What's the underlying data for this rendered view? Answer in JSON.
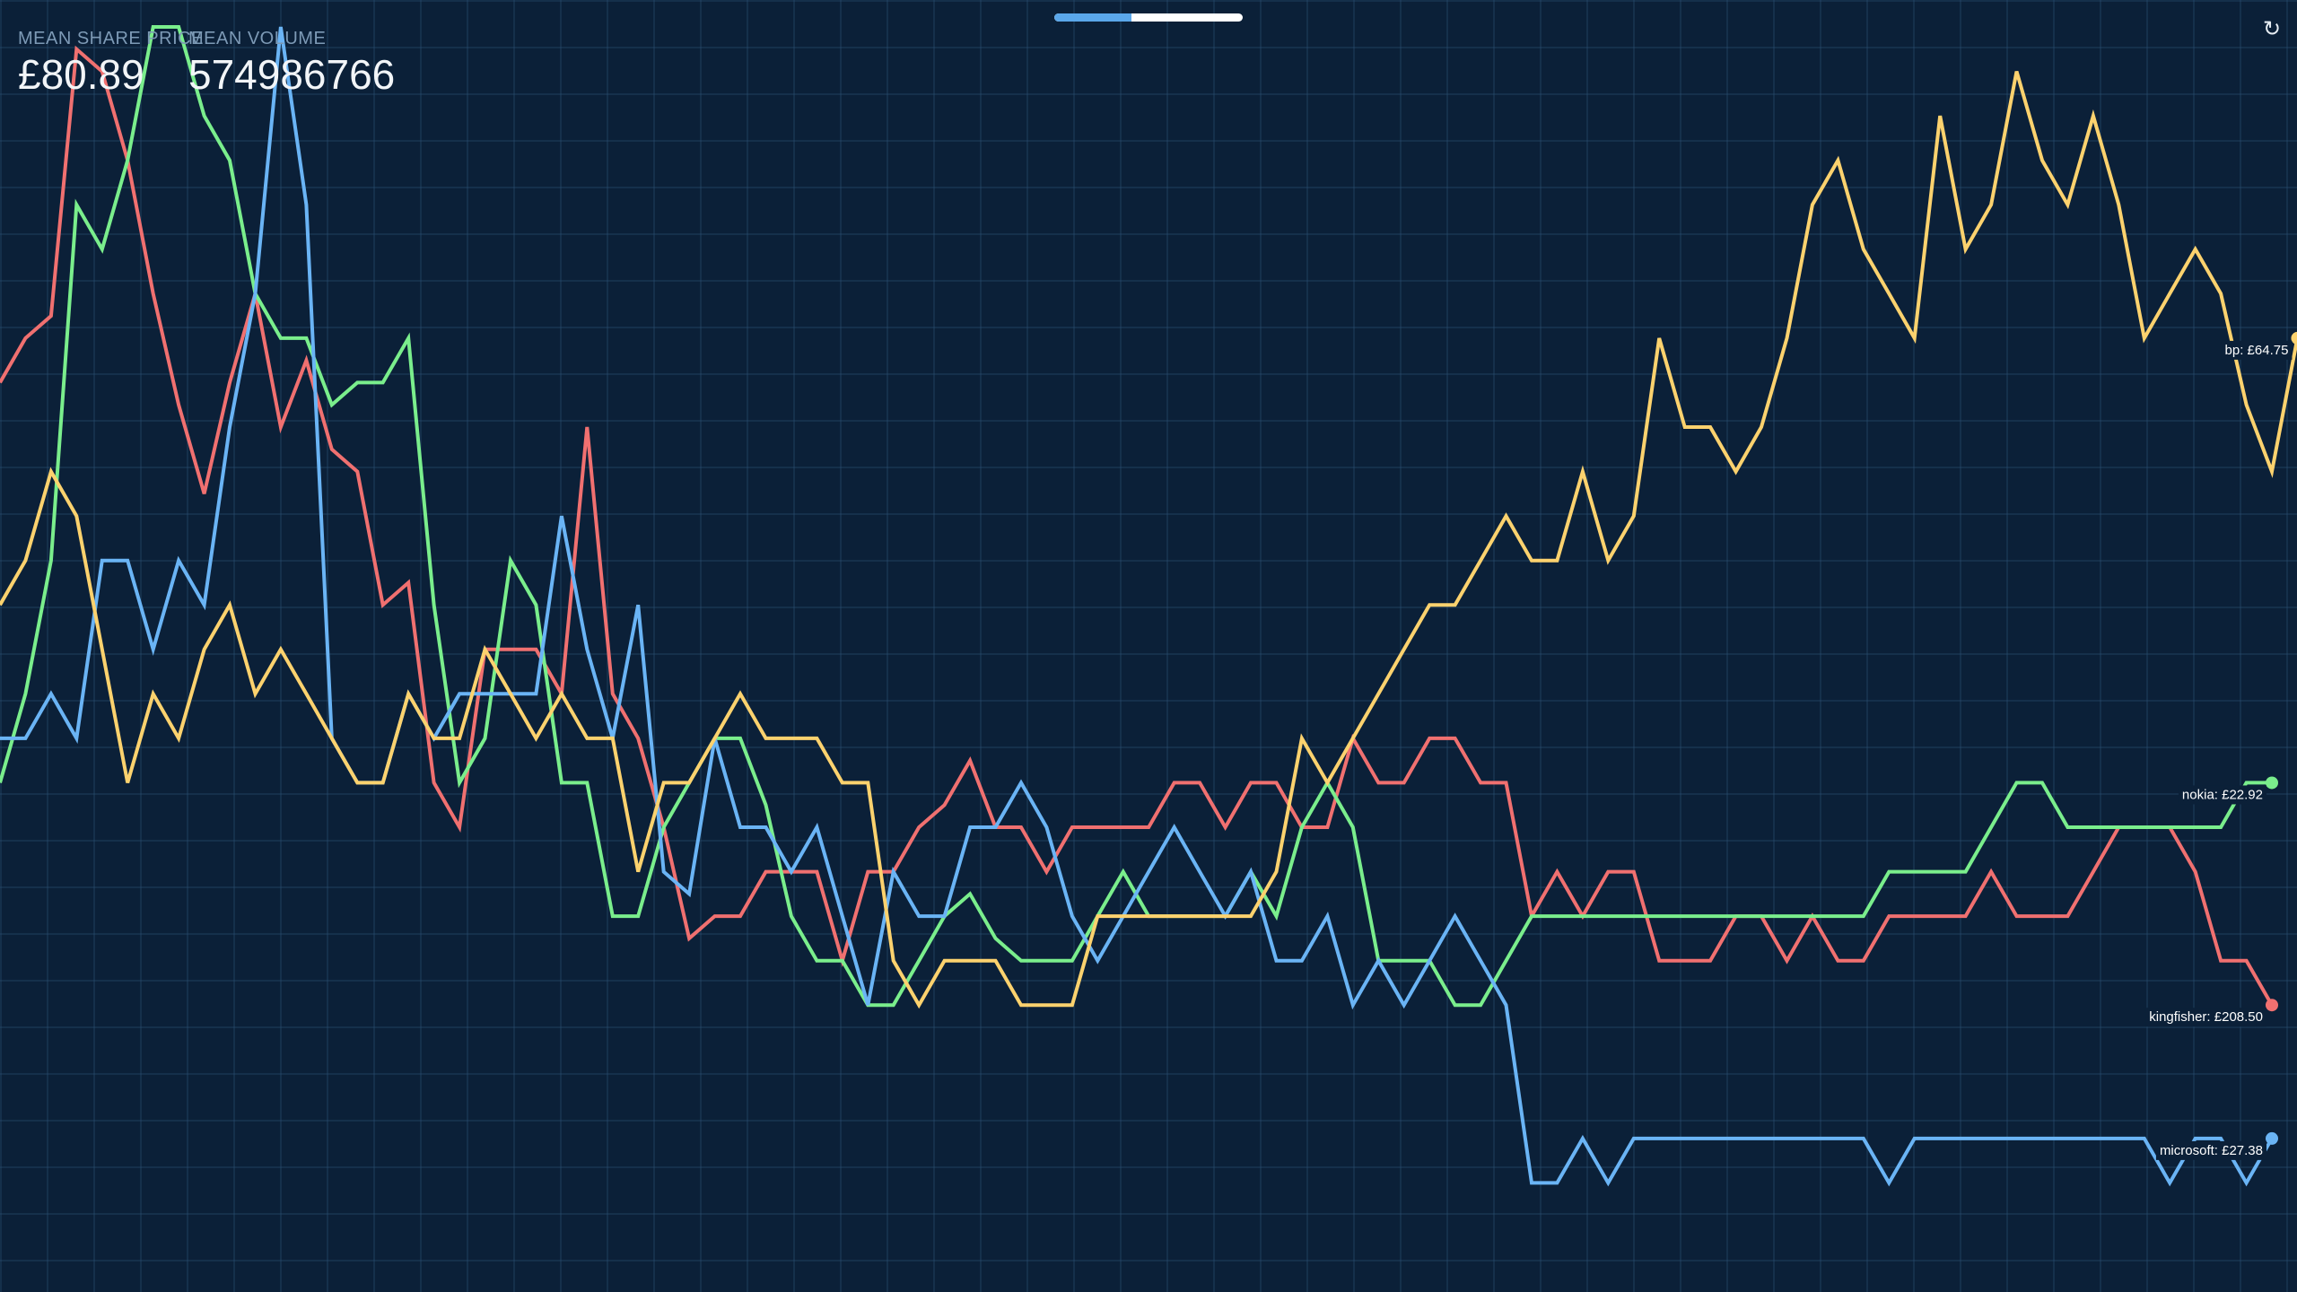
{
  "stats": {
    "price_label": "MEAN SHARE PRICE",
    "price_value": "£80.89",
    "volume_label": "MEAN VOLUME",
    "volume_value": "574986766"
  },
  "progress": {
    "fraction": 0.41
  },
  "controls": {
    "refresh_icon": "refresh-icon",
    "refresh_glyph": "↻"
  },
  "colors": {
    "background": "#0b2038",
    "kingfisher": "#f07070",
    "nokia": "#7aee8c",
    "microsoft": "#6ab4f5",
    "bp": "#fcd26e"
  },
  "chart_data": {
    "type": "line",
    "title": "",
    "xlabel": "",
    "ylabel": "",
    "ylim": [
      0,
      27
    ],
    "grid": true,
    "x_count": 90,
    "series": [
      {
        "name": "kingfisher",
        "end_label": "kingfisher: £208.50",
        "color": "#f07070",
        "values": [
          19,
          20,
          20.5,
          26.5,
          26,
          24,
          21,
          18.5,
          16.5,
          19,
          21,
          18,
          19.5,
          17.5,
          17,
          14,
          14.5,
          10,
          9,
          13,
          13,
          13,
          12,
          18,
          12,
          11,
          9,
          6.5,
          7,
          7,
          8,
          8,
          8,
          6,
          8,
          8,
          9,
          9.5,
          10.5,
          9,
          9,
          8,
          9,
          9,
          9,
          9,
          10,
          10,
          9,
          10,
          10,
          9,
          9,
          11,
          10,
          10,
          11,
          11,
          10,
          10,
          7,
          8,
          7,
          8,
          8,
          6,
          6,
          6,
          7,
          7,
          6,
          7,
          6,
          6,
          7,
          7,
          7,
          7,
          8,
          7,
          7,
          7,
          8,
          9,
          9,
          9,
          8,
          6,
          6,
          5
        ]
      },
      {
        "name": "nokia",
        "end_label": "nokia: £22.92",
        "color": "#7aee8c",
        "values": [
          10,
          12,
          15,
          23,
          22,
          24,
          27,
          27,
          25,
          24,
          21,
          20,
          20,
          18.5,
          19,
          19,
          20,
          14,
          10,
          11,
          15,
          14,
          10,
          10,
          7,
          7,
          9,
          10,
          11,
          11,
          9.5,
          7,
          6,
          6,
          5,
          5,
          6,
          7,
          7.5,
          6.5,
          6,
          6,
          6,
          7,
          8,
          7,
          7,
          7,
          7,
          8,
          7,
          9,
          10,
          9,
          6,
          6,
          6,
          5,
          5,
          6,
          7,
          7,
          7,
          7,
          7,
          7,
          7,
          7,
          7,
          7,
          7,
          7,
          7,
          7,
          8,
          8,
          8,
          8,
          9,
          10,
          10,
          9,
          9,
          9,
          9,
          9,
          9,
          9,
          10,
          10
        ]
      },
      {
        "name": "microsoft",
        "end_label": "microsoft: £27.38",
        "color": "#6ab4f5",
        "values": [
          11,
          11,
          12,
          11,
          15,
          15,
          13,
          15,
          14,
          18,
          21,
          27,
          23,
          11,
          10,
          10,
          12,
          11,
          12,
          12,
          12,
          12,
          16,
          13,
          11,
          14,
          8,
          7.5,
          11,
          9,
          9,
          8,
          9,
          7,
          5,
          8,
          7,
          7,
          9,
          9,
          10,
          9,
          7,
          6,
          7,
          8,
          9,
          8,
          7,
          8,
          6,
          6,
          7,
          5,
          6,
          5,
          6,
          7,
          6,
          5,
          1,
          1,
          2,
          1,
          2,
          2,
          2,
          2,
          2,
          2,
          2,
          2,
          2,
          2,
          1,
          2,
          2,
          2,
          2,
          2,
          2,
          2,
          2,
          2,
          2,
          1,
          2,
          2,
          1,
          2
        ]
      },
      {
        "name": "bp",
        "end_label": "bp: £64.75",
        "color": "#fcd26e",
        "values": [
          14,
          15,
          17,
          16,
          13,
          10,
          12,
          11,
          13,
          14,
          12,
          13,
          12,
          11,
          10,
          10,
          12,
          11,
          11,
          13,
          12,
          11,
          12,
          11,
          11,
          8,
          10,
          10,
          11,
          12,
          11,
          11,
          11,
          10,
          10,
          6,
          5,
          6,
          6,
          6,
          5,
          5,
          5,
          7,
          7,
          7,
          7,
          7,
          7,
          7,
          8,
          11,
          10,
          11,
          12,
          13,
          14,
          14,
          15,
          16,
          15,
          15,
          17,
          15,
          16,
          20,
          18,
          18,
          17,
          18,
          20,
          23,
          24,
          22,
          21,
          20,
          25,
          22,
          23,
          26,
          24,
          23,
          25,
          23,
          20,
          21,
          22,
          21,
          18.5,
          17,
          20
        ]
      }
    ]
  }
}
